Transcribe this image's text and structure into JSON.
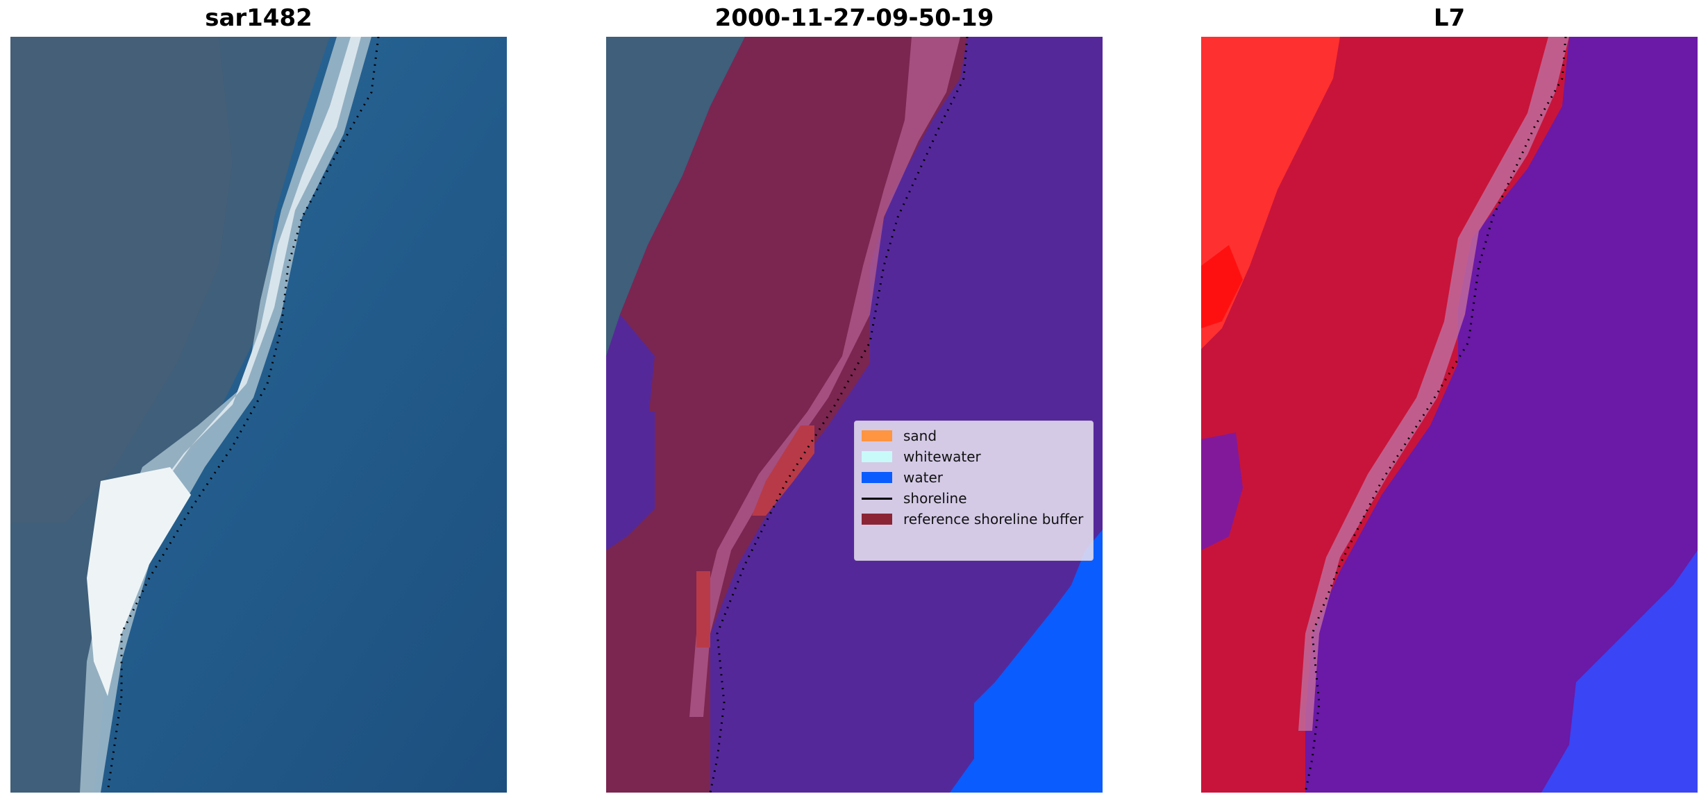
{
  "panels": [
    {
      "title": "sar1482"
    },
    {
      "title": "2000-11-27-09-50-19"
    },
    {
      "title": "L7"
    }
  ],
  "legend": {
    "items": [
      {
        "label": "sand",
        "color": "#ff9540"
      },
      {
        "label": "whitewater",
        "color": "#c8fafa"
      },
      {
        "label": "water",
        "color": "#0a5cff"
      },
      {
        "label": "shoreline",
        "color": "#000000"
      },
      {
        "label": "reference shoreline buffer",
        "color": "#8b2535"
      }
    ]
  },
  "colors": {
    "land_rgb": "#3f5f7a",
    "sea_rgb": "#1f5a8c",
    "beach_rgb": "#d8e4ec",
    "class_water_overlay": "#55289a",
    "class_deep_water": "#0a5cff",
    "buffer_overlay": "#7a2650",
    "l7_land": "#c8143a",
    "l7_sea": "#6a1aa6",
    "l7_bright": "#ff2a2a",
    "l7_water": "#3a45f5"
  }
}
